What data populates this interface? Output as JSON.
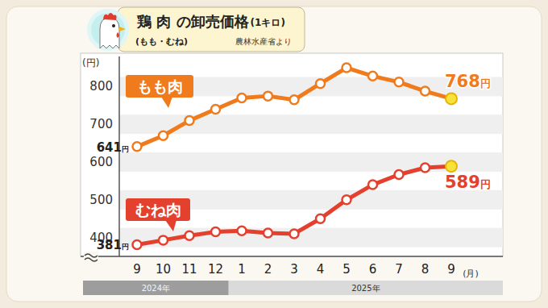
{
  "chart_data": {
    "type": "line",
    "title": "鶏 肉 の卸売価格",
    "title_note": "(1キロ)",
    "subtitle": "(もも・むね)",
    "source": "農林水産省より",
    "y_label": "(円)",
    "x_label": "(月)",
    "categories": [
      "9",
      "10",
      "11",
      "12",
      "1",
      "2",
      "3",
      "4",
      "5",
      "6",
      "7",
      "8",
      "9"
    ],
    "x_groups": [
      {
        "label": "2024年",
        "start": 0,
        "end": 3
      },
      {
        "label": "2025年",
        "start": 4,
        "end": 12
      }
    ],
    "series": [
      {
        "name": "もも肉",
        "color": "#f07b1c",
        "values": [
          641,
          670,
          710,
          740,
          770,
          775,
          765,
          808,
          850,
          828,
          812,
          788,
          768
        ],
        "value_labels": [
          "641円",
          null,
          null,
          null,
          null,
          null,
          null,
          null,
          null,
          null,
          null,
          null,
          "768円"
        ]
      },
      {
        "name": "むね肉",
        "color": "#e4402e",
        "values": [
          381,
          393,
          405,
          415,
          418,
          412,
          410,
          450,
          500,
          540,
          567,
          585,
          589
        ],
        "value_labels": [
          "381円",
          null,
          null,
          null,
          null,
          null,
          null,
          null,
          null,
          null,
          null,
          null,
          "589円"
        ]
      }
    ],
    "ylim": [
      350,
      880
    ],
    "yticks": [
      400,
      500,
      600,
      700,
      800
    ],
    "grid": true,
    "data_labels": true,
    "marker": "circle"
  }
}
